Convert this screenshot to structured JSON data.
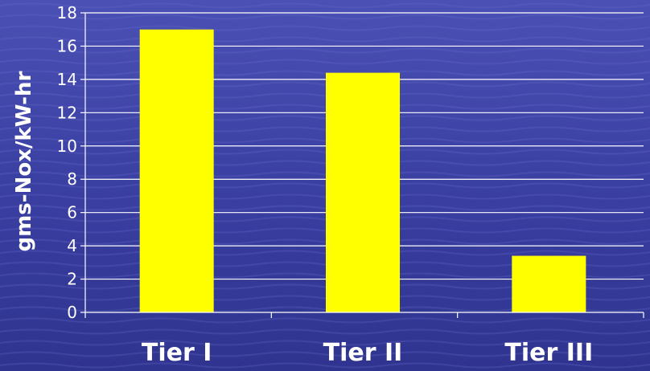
{
  "chart_data": {
    "type": "bar",
    "title": "",
    "xlabel": "",
    "ylabel": "gms-Nox/kW-hr",
    "categories": [
      "Tier I",
      "Tier II",
      "Tier III"
    ],
    "values": [
      17,
      14.4,
      3.4
    ],
    "ylim": [
      0,
      18
    ],
    "y_ticks": [
      "0",
      "2",
      "4",
      "6",
      "8",
      "10",
      "12",
      "14",
      "16",
      "18"
    ],
    "grid": true,
    "legend": "none",
    "colors": {
      "bar": "#ffff00",
      "background": "#3a3fa0",
      "text": "#ffffff",
      "gridline": "#ffffff"
    }
  }
}
